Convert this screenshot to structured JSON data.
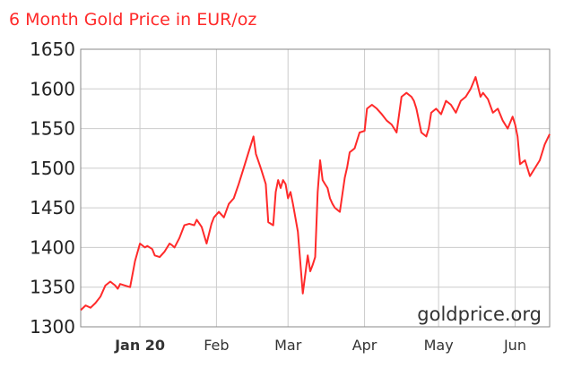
{
  "chart_data": {
    "type": "line",
    "title": "6 Month Gold Price in EUR/oz",
    "watermark": "goldprice.org",
    "ylim": [
      1300,
      1650
    ],
    "yticks": [
      1300,
      1350,
      1400,
      1450,
      1500,
      1550,
      1600,
      1650
    ],
    "xlim": [
      "2019-12-08",
      "2020-06-15"
    ],
    "xticks": [
      {
        "label": "Jan 20",
        "date": "2020-01-01",
        "bold": true
      },
      {
        "label": "Feb",
        "date": "2020-02-01",
        "bold": false
      },
      {
        "label": "Mar",
        "date": "2020-03-01",
        "bold": false
      },
      {
        "label": "Apr",
        "date": "2020-04-01",
        "bold": false
      },
      {
        "label": "May",
        "date": "2020-05-01",
        "bold": false
      },
      {
        "label": "Jun",
        "date": "2020-06-01",
        "bold": false
      }
    ],
    "grid": true,
    "colors": {
      "line": "#ff2a2a",
      "title": "#ff2a2a",
      "grid": "#cccccc",
      "axis": "#888888"
    },
    "series": [
      {
        "x": [
          "2019-12-08",
          "2019-12-10",
          "2019-12-12",
          "2019-12-14",
          "2019-12-16",
          "2019-12-18",
          "2019-12-20",
          "2019-12-22",
          "2019-12-23",
          "2019-12-24",
          "2019-12-26",
          "2019-12-28",
          "2019-12-30",
          "2020-01-01",
          "2020-01-03",
          "2020-01-04",
          "2020-01-06",
          "2020-01-07",
          "2020-01-09",
          "2020-01-11",
          "2020-01-13",
          "2020-01-14",
          "2020-01-15",
          "2020-01-17",
          "2020-01-19",
          "2020-01-21",
          "2020-01-23",
          "2020-01-24",
          "2020-01-26",
          "2020-01-28",
          "2020-01-30",
          "2020-01-31",
          "2020-02-02",
          "2020-02-04",
          "2020-02-06",
          "2020-02-08",
          "2020-02-10",
          "2020-02-12",
          "2020-02-14",
          "2020-02-16",
          "2020-02-17",
          "2020-02-19",
          "2020-02-21",
          "2020-02-22",
          "2020-02-24",
          "2020-02-25",
          "2020-02-26",
          "2020-02-27",
          "2020-02-28",
          "2020-02-29",
          "2020-03-01",
          "2020-03-02",
          "2020-03-03",
          "2020-03-05",
          "2020-03-07",
          "2020-03-09",
          "2020-03-10",
          "2020-03-11",
          "2020-03-12",
          "2020-03-13",
          "2020-03-14",
          "2020-03-15",
          "2020-03-16",
          "2020-03-17",
          "2020-03-18",
          "2020-03-19",
          "2020-03-20",
          "2020-03-22",
          "2020-03-24",
          "2020-03-25",
          "2020-03-26",
          "2020-03-28",
          "2020-03-30",
          "2020-04-01",
          "2020-04-02",
          "2020-04-04",
          "2020-04-06",
          "2020-04-08",
          "2020-04-10",
          "2020-04-12",
          "2020-04-14",
          "2020-04-16",
          "2020-04-18",
          "2020-04-20",
          "2020-04-21",
          "2020-04-22",
          "2020-04-24",
          "2020-04-26",
          "2020-04-27",
          "2020-04-28",
          "2020-04-30",
          "2020-05-02",
          "2020-05-04",
          "2020-05-06",
          "2020-05-08",
          "2020-05-10",
          "2020-05-12",
          "2020-05-14",
          "2020-05-16",
          "2020-05-18",
          "2020-05-19",
          "2020-05-21",
          "2020-05-23",
          "2020-05-25",
          "2020-05-27",
          "2020-05-29",
          "2020-05-31",
          "2020-06-01",
          "2020-06-02",
          "2020-06-03",
          "2020-06-05",
          "2020-06-07",
          "2020-06-09",
          "2020-06-11",
          "2020-06-13",
          "2020-06-15"
        ],
        "y": [
          1321,
          1327,
          1324,
          1330,
          1338,
          1352,
          1357,
          1352,
          1348,
          1354,
          1352,
          1350,
          1383,
          1405,
          1400,
          1402,
          1398,
          1390,
          1388,
          1395,
          1405,
          1403,
          1400,
          1412,
          1428,
          1430,
          1428,
          1435,
          1426,
          1405,
          1430,
          1438,
          1445,
          1438,
          1455,
          1462,
          1480,
          1500,
          1520,
          1540,
          1518,
          1500,
          1480,
          1432,
          1428,
          1470,
          1485,
          1475,
          1485,
          1480,
          1462,
          1470,
          1455,
          1420,
          1342,
          1390,
          1370,
          1378,
          1388,
          1470,
          1510,
          1485,
          1480,
          1475,
          1462,
          1455,
          1450,
          1445,
          1488,
          1502,
          1520,
          1525,
          1545,
          1547,
          1575,
          1580,
          1575,
          1568,
          1560,
          1555,
          1545,
          1590,
          1595,
          1590,
          1585,
          1575,
          1545,
          1540,
          1550,
          1570,
          1575,
          1568,
          1585,
          1580,
          1570,
          1585,
          1590,
          1600,
          1615,
          1590,
          1595,
          1587,
          1570,
          1575,
          1560,
          1550,
          1565,
          1555,
          1540,
          1505,
          1510,
          1490,
          1500,
          1510,
          1530,
          1543
        ]
      }
    ]
  }
}
